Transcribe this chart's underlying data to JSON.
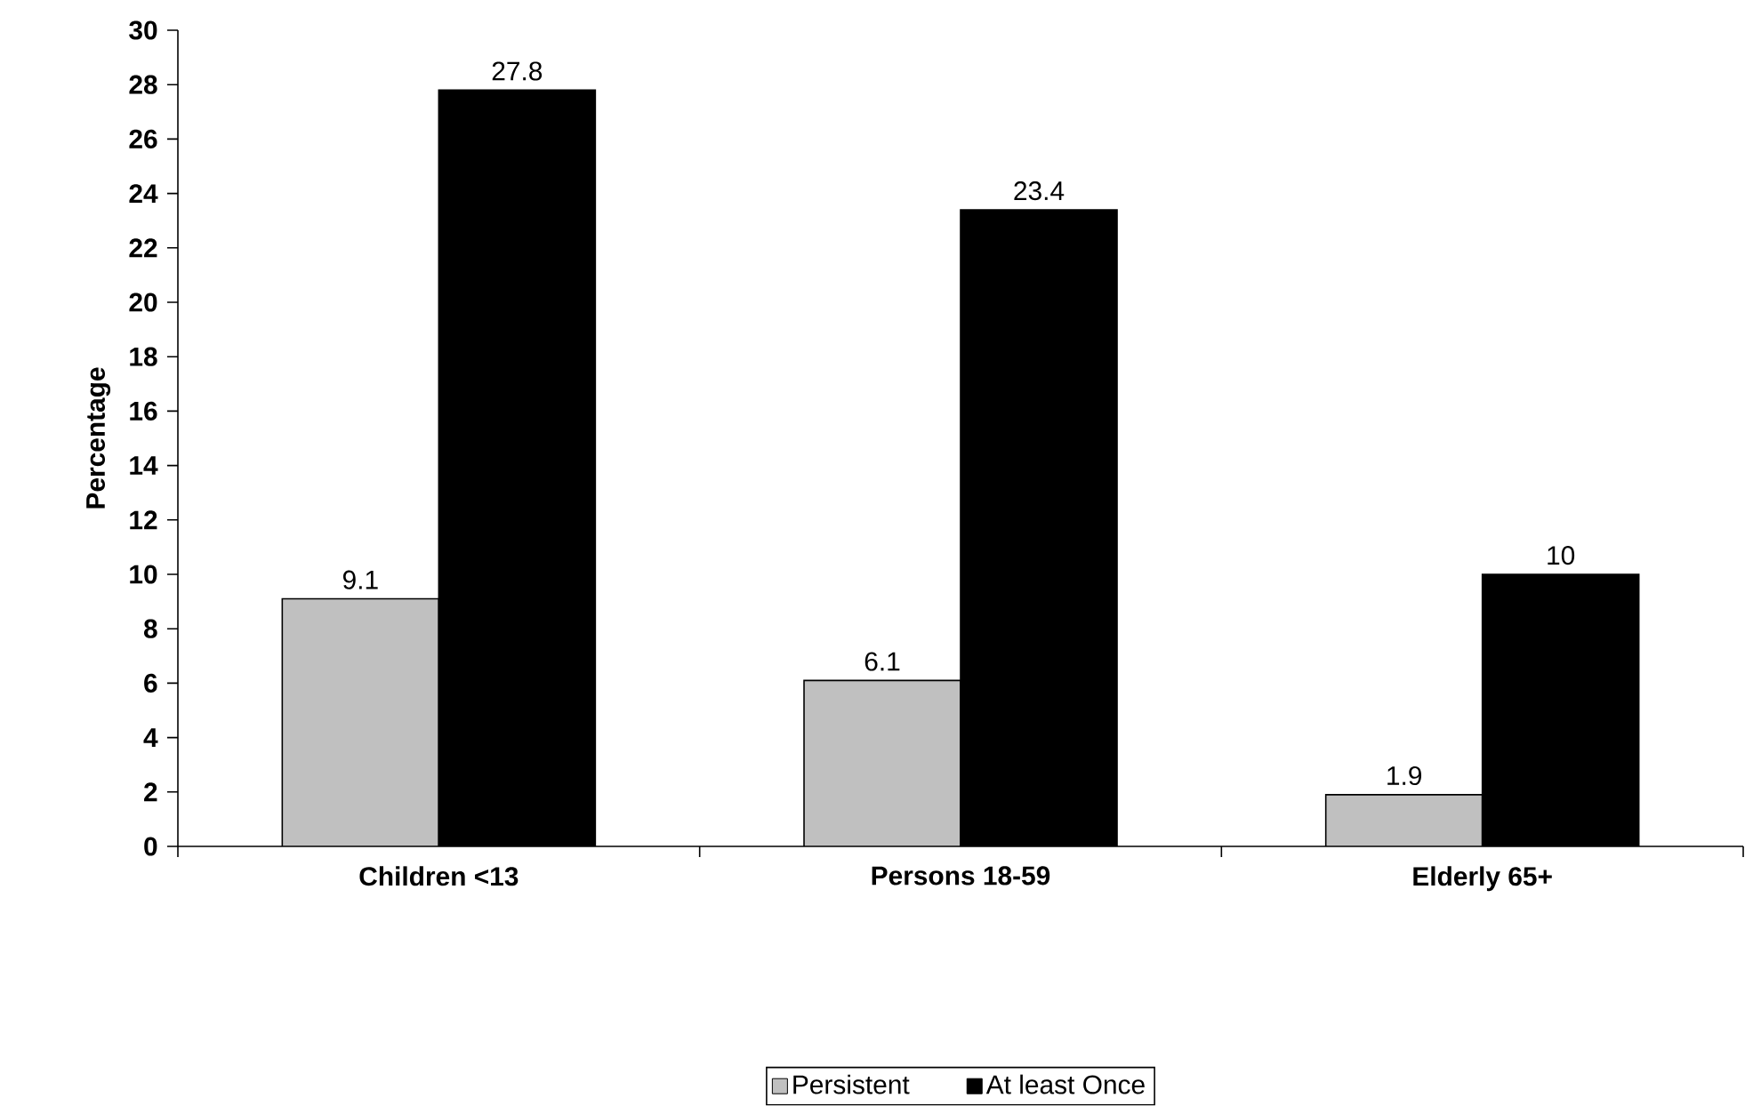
{
  "chart_data": {
    "type": "bar",
    "ylabel": "Percentage",
    "categories": [
      "Children <13",
      "Persons 18-59",
      "Elderly 65+"
    ],
    "series": [
      {
        "name": "Persistent",
        "color": "#c0c0c0",
        "values": [
          9.1,
          6.1,
          1.9
        ]
      },
      {
        "name": "At least Once",
        "color": "#000000",
        "values": [
          27.8,
          23.4,
          10
        ]
      }
    ],
    "ylim": [
      0,
      30
    ],
    "yticks": [
      0,
      2,
      4,
      6,
      8,
      10,
      12,
      14,
      16,
      18,
      20,
      22,
      24,
      26,
      28,
      30
    ],
    "data_labels": true,
    "legend": "bottom",
    "grid": false
  }
}
